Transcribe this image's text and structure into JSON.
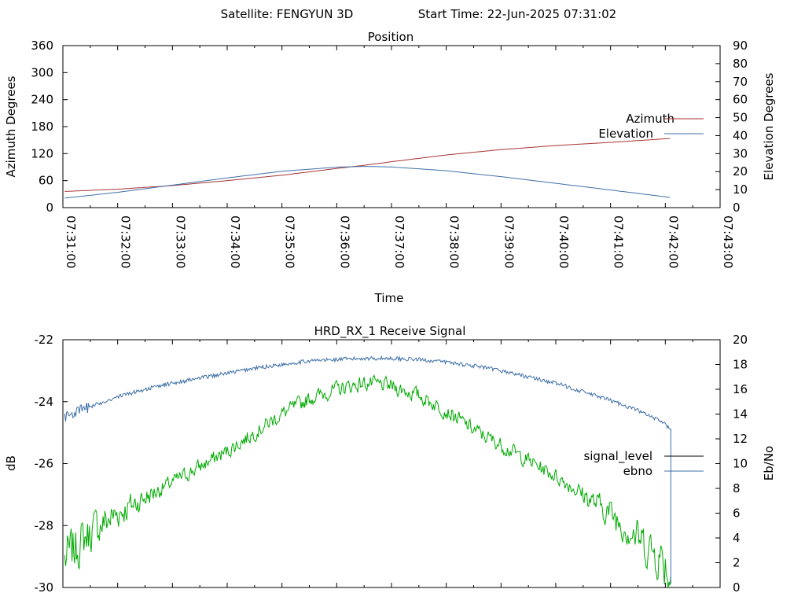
{
  "header": {
    "satellite": "Satellite: FENGYUN 3D",
    "start_time": "Start Time: 22-Jun-2025 07:31:02"
  },
  "colors": {
    "azimuth": "#a83232",
    "elevation": "#3e6fa8",
    "signal_level": "#00aa00",
    "ebno": "#3e6fa8",
    "legend_signal_level": "#000000",
    "axes": "#000000"
  },
  "chart_data": [
    {
      "type": "line",
      "title": "Position",
      "xlabel": "Time",
      "ylabel": "Azimuth Degrees",
      "y2label": "Elevation Degrees",
      "x_ticks": [
        "07:31:00",
        "07:32:00",
        "07:33:00",
        "07:34:00",
        "07:35:00",
        "07:36:00",
        "07:37:00",
        "07:38:00",
        "07:39:00",
        "07:40:00",
        "07:41:00",
        "07:42:00",
        "07:43:00"
      ],
      "xlim": [
        "07:31:00",
        "07:43:00"
      ],
      "y_ticks": [
        0,
        60,
        120,
        180,
        240,
        300,
        360
      ],
      "ylim": [
        0,
        360
      ],
      "y2_ticks": [
        0,
        10,
        20,
        30,
        40,
        50,
        60,
        70,
        80,
        90
      ],
      "y2lim": [
        0,
        90
      ],
      "legend_position": "right",
      "grid": false,
      "series": [
        {
          "name": "Azimuth",
          "axis": "left",
          "x": [
            "07:31:02",
            "07:32:00",
            "07:33:00",
            "07:34:00",
            "07:35:00",
            "07:36:00",
            "07:36:30",
            "07:37:00",
            "07:38:00",
            "07:39:00",
            "07:40:00",
            "07:41:00",
            "07:42:00",
            "07:42:06"
          ],
          "values": [
            36,
            41,
            49,
            60,
            72,
            87,
            94,
            102,
            117,
            129,
            138,
            145,
            153,
            154
          ]
        },
        {
          "name": "Elevation",
          "axis": "right",
          "x": [
            "07:31:02",
            "07:32:00",
            "07:33:00",
            "07:34:00",
            "07:35:00",
            "07:36:00",
            "07:36:30",
            "07:37:00",
            "07:38:00",
            "07:39:00",
            "07:40:00",
            "07:41:00",
            "07:42:00",
            "07:42:06"
          ],
          "values": [
            5.3,
            8.5,
            12.5,
            16.5,
            20.2,
            22.5,
            22.9,
            22.6,
            20.5,
            17.2,
            13.5,
            9.8,
            6.0,
            5.5
          ]
        }
      ]
    },
    {
      "type": "line",
      "title": "HRD_RX_1 Receive Signal",
      "xlabel": "",
      "ylabel": "dB",
      "y2label": "Eb/No",
      "xlim": [
        "07:31:00",
        "07:43:00"
      ],
      "y_ticks": [
        -30,
        -28,
        -26,
        -24,
        -22
      ],
      "ylim": [
        -30,
        -22
      ],
      "y2_ticks": [
        0,
        2,
        4,
        6,
        8,
        10,
        12,
        14,
        16,
        18,
        20
      ],
      "y2lim": [
        0,
        20
      ],
      "legend_position": "right",
      "grid": false,
      "series": [
        {
          "name": "signal_level",
          "axis": "left",
          "x": [
            "07:31:02",
            "07:31:30",
            "07:32:00",
            "07:32:30",
            "07:33:00",
            "07:33:30",
            "07:34:00",
            "07:34:30",
            "07:35:00",
            "07:35:30",
            "07:36:00",
            "07:36:30",
            "07:37:00",
            "07:37:30",
            "07:38:00",
            "07:38:30",
            "07:39:00",
            "07:39:30",
            "07:40:00",
            "07:40:30",
            "07:41:00",
            "07:41:30",
            "07:42:00",
            "07:42:06"
          ],
          "values": [
            -29.1,
            -28.2,
            -27.6,
            -27.1,
            -26.6,
            -26.1,
            -25.6,
            -25.0,
            -24.4,
            -23.9,
            -23.6,
            -23.4,
            -23.5,
            -23.8,
            -24.3,
            -24.9,
            -25.4,
            -25.9,
            -26.4,
            -27.0,
            -27.6,
            -28.4,
            -29.2,
            -29.8
          ]
        },
        {
          "name": "ebno",
          "axis": "right",
          "x": [
            "07:31:02",
            "07:31:30",
            "07:32:00",
            "07:32:30",
            "07:33:00",
            "07:33:30",
            "07:34:00",
            "07:34:30",
            "07:35:00",
            "07:35:30",
            "07:36:00",
            "07:36:30",
            "07:37:00",
            "07:37:30",
            "07:38:00",
            "07:38:30",
            "07:39:00",
            "07:39:30",
            "07:40:00",
            "07:40:30",
            "07:41:00",
            "07:41:30",
            "07:42:00",
            "07:42:04",
            "07:42:06"
          ],
          "values": [
            13.8,
            14.6,
            15.4,
            16.0,
            16.5,
            16.9,
            17.3,
            17.7,
            18.0,
            18.3,
            18.4,
            18.5,
            18.5,
            18.4,
            18.2,
            17.9,
            17.5,
            17.0,
            16.5,
            15.8,
            15.1,
            14.3,
            13.2,
            12.8,
            0.3
          ]
        }
      ]
    }
  ]
}
